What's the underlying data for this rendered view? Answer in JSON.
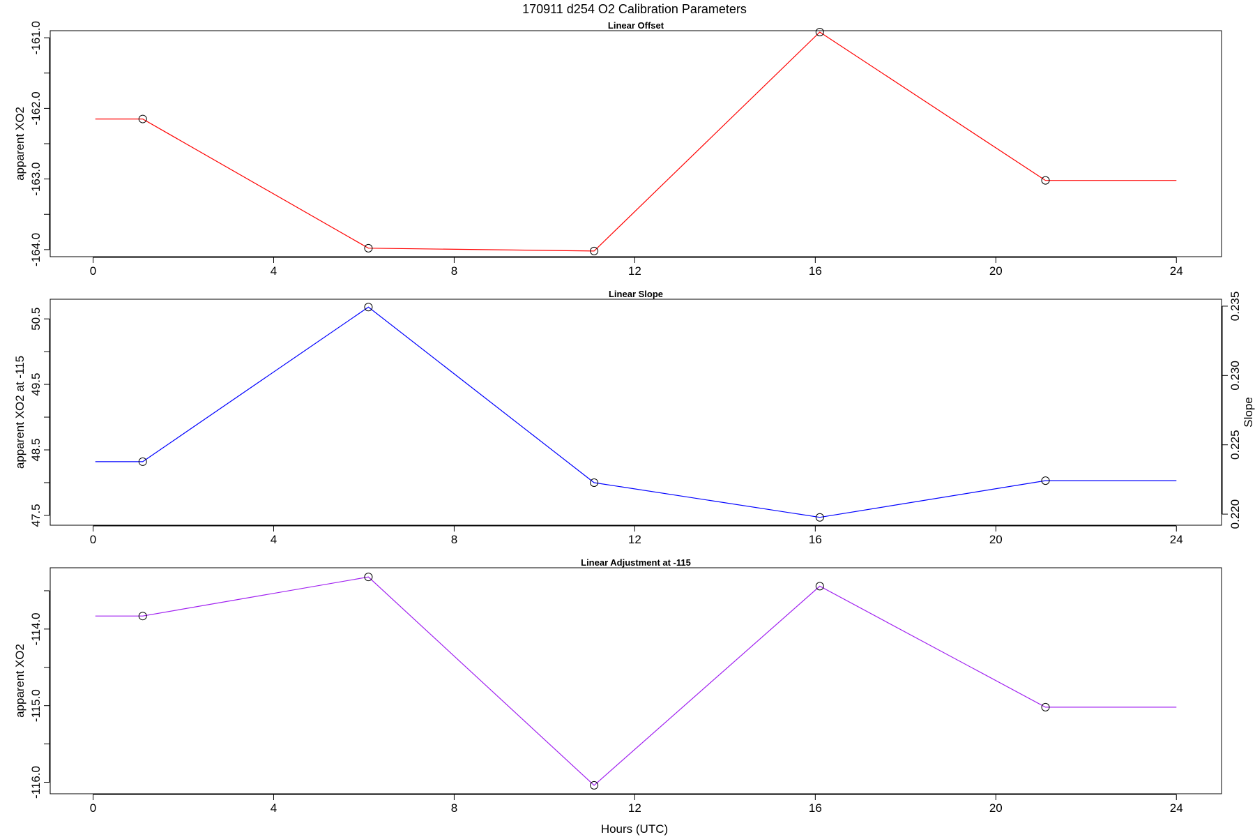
{
  "figure": {
    "title": "170911   d254   O2 Calibration Parameters",
    "xlabel": "Hours (UTC)"
  },
  "chart_data": [
    {
      "type": "line",
      "title": "Linear Offset",
      "ylabel": "apparent XO2",
      "y2label": "",
      "color": "#ff0000",
      "x_ticks": [
        0,
        4,
        8,
        12,
        16,
        20,
        24
      ],
      "xlim": [
        -0.95,
        25.0
      ],
      "y_ticks": [
        -164.0,
        -163.5,
        -163.0,
        -162.5,
        -162.0,
        -161.5,
        -161.0
      ],
      "y_tick_labels": [
        "-164.0",
        "",
        "-163.0",
        "",
        "-162.0",
        "",
        "-161.0"
      ],
      "ylim": [
        -164.1,
        -160.9
      ],
      "line_x": [
        0.05,
        1.1,
        6.1,
        11.1,
        16.1,
        21.1,
        24.0
      ],
      "line_y": [
        -162.15,
        -162.15,
        -163.98,
        -164.02,
        -160.92,
        -163.02,
        -163.02
      ],
      "point_x": [
        1.1,
        6.1,
        11.1,
        16.1,
        21.1
      ],
      "point_y": [
        -162.15,
        -163.98,
        -164.02,
        -160.92,
        -163.02
      ]
    },
    {
      "type": "line",
      "title": "Linear Slope",
      "ylabel": "apparent XO2 at -115",
      "y2label": "Slope",
      "color": "#0000ff",
      "x_ticks": [
        0,
        4,
        8,
        12,
        16,
        20,
        24
      ],
      "xlim": [
        -0.95,
        25.0
      ],
      "y_ticks": [
        47.5,
        48.0,
        48.5,
        49.0,
        49.5,
        50.0,
        50.5
      ],
      "y_tick_labels": [
        "47.5",
        "",
        "48.5",
        "",
        "49.5",
        "",
        "50.5"
      ],
      "ylim": [
        47.35,
        50.8
      ],
      "y2_ticks": [
        0.22,
        0.225,
        0.23,
        0.235
      ],
      "y2_tick_labels": [
        "0.220",
        "0.225",
        "0.230",
        "0.235"
      ],
      "y2lim": [
        0.2192,
        0.2355
      ],
      "line_x": [
        0.05,
        1.1,
        6.1,
        11.1,
        16.1,
        21.1,
        24.0
      ],
      "line_y": [
        48.32,
        48.32,
        50.68,
        48.0,
        47.47,
        48.03,
        48.03
      ],
      "point_x": [
        1.1,
        6.1,
        11.1,
        16.1,
        21.1
      ],
      "point_y": [
        48.32,
        50.68,
        48.0,
        47.47,
        48.03
      ]
    },
    {
      "type": "line",
      "title": "Linear Adjustment at -115",
      "ylabel": "apparent XO2",
      "y2label": "",
      "color": "#a020f0",
      "x_ticks": [
        0,
        4,
        8,
        12,
        16,
        20,
        24
      ],
      "xlim": [
        -0.95,
        25.0
      ],
      "y_ticks": [
        -116.0,
        -115.5,
        -115.0,
        -114.5,
        -114.0,
        -113.5
      ],
      "y_tick_labels": [
        "-116.0",
        "",
        "-115.0",
        "",
        "-114.0",
        ""
      ],
      "ylim": [
        -116.15,
        -113.2
      ],
      "line_x": [
        0.05,
        1.1,
        6.1,
        11.1,
        16.1,
        21.1,
        24.0
      ],
      "line_y": [
        -113.83,
        -113.83,
        -113.32,
        -116.04,
        -113.44,
        -115.02,
        -115.02
      ],
      "point_x": [
        1.1,
        6.1,
        11.1,
        16.1,
        21.1
      ],
      "point_y": [
        -113.83,
        -113.32,
        -116.04,
        -113.44,
        -115.02
      ]
    }
  ]
}
